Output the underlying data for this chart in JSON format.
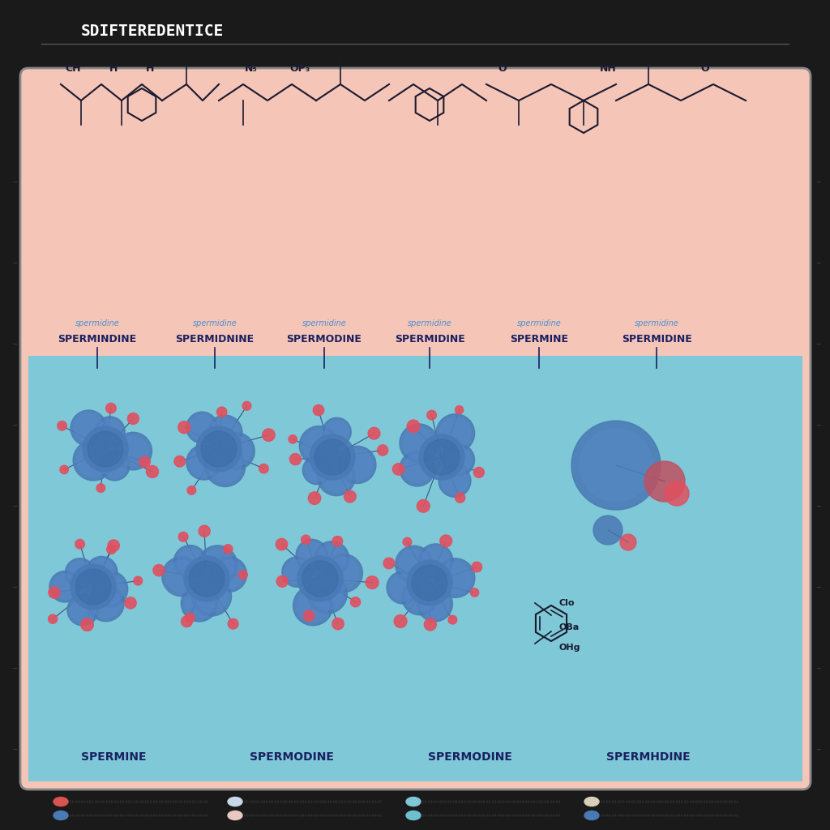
{
  "title": "SDIFTEREDENTICE",
  "subtitle_labels": [
    "spermidine",
    "spermidine",
    "spermidine",
    "spermidine",
    "spermidine",
    "spermidine"
  ],
  "main_labels": [
    "SPERMINDINE",
    "SPERMIDNINE",
    "SPERMODINE",
    "SPERMIDINE",
    "SPERMINE",
    "SPERMIDINE"
  ],
  "bottom_labels": [
    "SPERMINE",
    "SPERMODINE",
    "SPERMODINE",
    "SPERMHDINE"
  ],
  "bg_dark": "#1a1a1a",
  "bg_pink": "#f5c5b8",
  "bg_blue": "#7ec8d8",
  "molecule_blue": "#4a7ab5",
  "molecule_red": "#e05060",
  "legend_colors": [
    [
      "#d9534f",
      "#c8d8e8",
      "#7ec8d8",
      "#d8d0b8"
    ],
    [
      "#4a7ab5",
      "#e8c8c0",
      "#6ec0d0",
      "#4a7ab5"
    ]
  ],
  "figsize": [
    10.24,
    10.24
  ],
  "dpi": 100
}
